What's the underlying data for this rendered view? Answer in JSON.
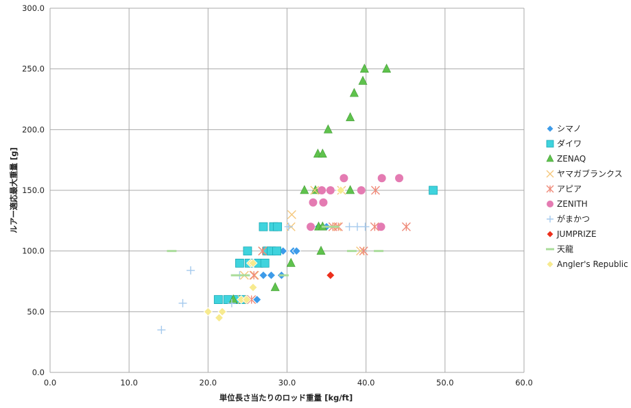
{
  "chart_data": {
    "type": "scatter",
    "xlabel": "単位長さ当たりのロッド重量 [kg/ft]",
    "ylabel": "ルアー適応最大重量 [g]",
    "xlim": [
      0,
      60
    ],
    "ylim": [
      0,
      300
    ],
    "x_ticks": [
      "0.0",
      "10.0",
      "20.0",
      "30.0",
      "40.0",
      "50.0",
      "60.0"
    ],
    "y_ticks": [
      "0.0",
      "50.0",
      "100.0",
      "150.0",
      "200.0",
      "250.0",
      "300.0"
    ],
    "grid": true,
    "legend_position": "right",
    "series": [
      {
        "name": "シマノ",
        "marker": "diamond",
        "color": "#3d9be9",
        "points": [
          [
            26.2,
            60
          ],
          [
            27.0,
            80
          ],
          [
            28.0,
            80
          ],
          [
            29.3,
            80
          ],
          [
            29.5,
            100
          ],
          [
            30.8,
            100
          ],
          [
            31.2,
            100
          ],
          [
            34.0,
            120
          ],
          [
            35.0,
            120
          ]
        ]
      },
      {
        "name": "ダイワ",
        "marker": "square",
        "color": "#3fd3dd",
        "points": [
          [
            21.3,
            60
          ],
          [
            22.5,
            60
          ],
          [
            23.7,
            60
          ],
          [
            24.5,
            60
          ],
          [
            24.0,
            90
          ],
          [
            25.2,
            90
          ],
          [
            26.4,
            90
          ],
          [
            27.2,
            90
          ],
          [
            25.0,
            100
          ],
          [
            27.5,
            100
          ],
          [
            28.0,
            100
          ],
          [
            28.7,
            100
          ],
          [
            27.0,
            120
          ],
          [
            28.3,
            120
          ],
          [
            28.8,
            120
          ],
          [
            48.5,
            150
          ]
        ]
      },
      {
        "name": "ZENAQ",
        "marker": "triangle",
        "color": "#5fc24d",
        "points": [
          [
            23.2,
            60
          ],
          [
            28.5,
            70
          ],
          [
            30.5,
            90
          ],
          [
            34.3,
            100
          ],
          [
            32.2,
            150
          ],
          [
            33.6,
            150
          ],
          [
            38.0,
            150
          ],
          [
            34.0,
            120
          ],
          [
            34.5,
            120
          ],
          [
            33.9,
            180
          ],
          [
            34.5,
            180
          ],
          [
            35.2,
            200
          ],
          [
            38.0,
            210
          ],
          [
            38.5,
            230
          ],
          [
            39.6,
            240
          ],
          [
            39.8,
            250
          ],
          [
            42.6,
            250
          ]
        ]
      },
      {
        "name": "ヤマガブランクス",
        "marker": "x",
        "color": "#f5c77b",
        "points": [
          [
            24.3,
            60
          ],
          [
            24.6,
            80
          ],
          [
            25.9,
            80
          ],
          [
            26.9,
            100
          ],
          [
            30.5,
            120
          ],
          [
            30.6,
            130
          ],
          [
            33.5,
            150
          ],
          [
            36.9,
            150
          ],
          [
            36.3,
            120
          ],
          [
            39.3,
            100
          ]
        ]
      },
      {
        "name": "アピア",
        "marker": "asterisk",
        "color": "#ef8a79",
        "points": [
          [
            25.5,
            60
          ],
          [
            25.8,
            80
          ],
          [
            26.9,
            100
          ],
          [
            35.8,
            120
          ],
          [
            36.5,
            120
          ],
          [
            39.7,
            100
          ],
          [
            41.1,
            120
          ],
          [
            45.1,
            120
          ],
          [
            41.2,
            150
          ]
        ]
      },
      {
        "name": "ZENITH",
        "marker": "circle",
        "color": "#e47bb2",
        "points": [
          [
            33.0,
            120
          ],
          [
            33.3,
            140
          ],
          [
            34.6,
            140
          ],
          [
            34.4,
            150
          ],
          [
            35.5,
            150
          ],
          [
            37.2,
            160
          ],
          [
            39.4,
            150
          ],
          [
            41.9,
            120
          ],
          [
            42.0,
            160
          ],
          [
            44.2,
            160
          ]
        ]
      },
      {
        "name": "がまかつ",
        "marker": "plus",
        "color": "#a4c9ed",
        "points": [
          [
            14.1,
            35
          ],
          [
            16.8,
            57
          ],
          [
            17.8,
            84
          ],
          [
            23.0,
            57
          ],
          [
            24.0,
            80
          ],
          [
            30.2,
            120
          ],
          [
            37.9,
            120
          ],
          [
            38.9,
            120
          ],
          [
            39.9,
            120
          ]
        ]
      },
      {
        "name": "JUMPRIZE",
        "marker": "diamond",
        "color": "#ec2f1c",
        "points": [
          [
            35.5,
            80
          ]
        ]
      },
      {
        "name": "天龍",
        "marker": "dash",
        "color": "#a9dc9a",
        "points": [
          [
            15.4,
            100
          ],
          [
            23.5,
            80
          ],
          [
            24.7,
            80
          ],
          [
            29.6,
            80
          ],
          [
            38.2,
            100
          ],
          [
            41.6,
            100
          ],
          [
            35.0,
            120
          ],
          [
            36.0,
            120
          ]
        ]
      },
      {
        "name": "Angler's Republic",
        "marker": "diamond",
        "color": "#f7ea8f",
        "points": [
          [
            20.0,
            50
          ],
          [
            21.4,
            45
          ],
          [
            21.8,
            50
          ],
          [
            24.2,
            60
          ],
          [
            24.9,
            60
          ],
          [
            25.4,
            90
          ],
          [
            25.7,
            90
          ],
          [
            25.7,
            70
          ],
          [
            36.8,
            150
          ]
        ]
      }
    ]
  }
}
